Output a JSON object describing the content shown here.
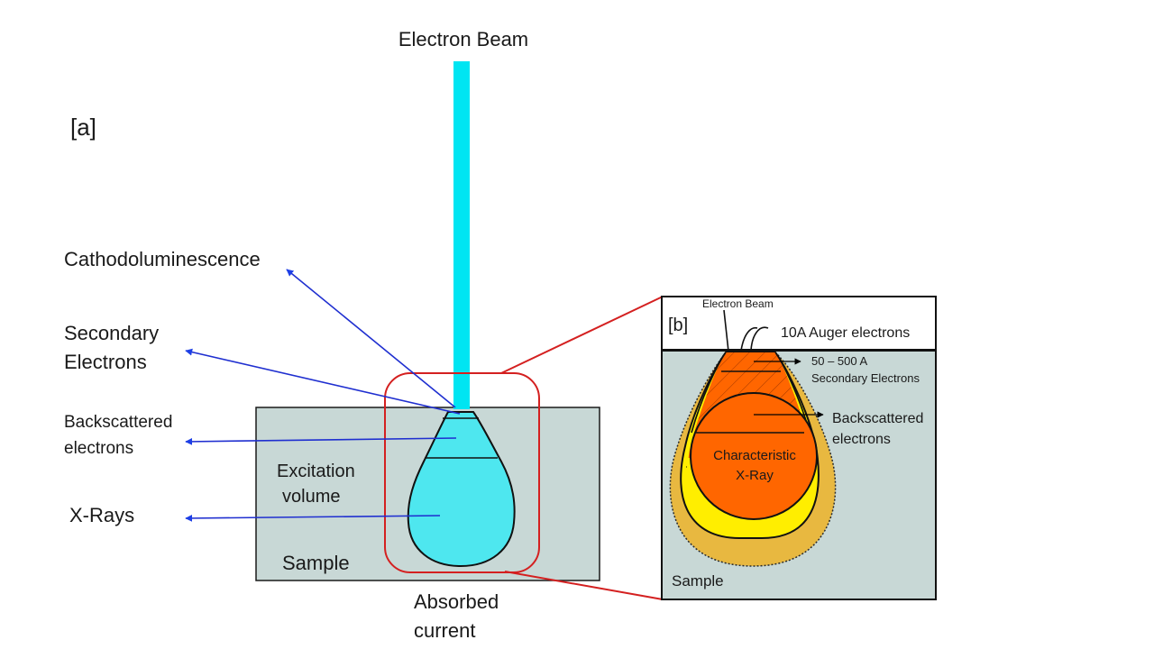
{
  "labels": {
    "electron_beam": "Electron Beam",
    "panel_a": "[a]",
    "cathodoluminescence": "Cathodoluminescence",
    "secondary_electrons_line1": "Secondary",
    "secondary_electrons_line2": "Electrons",
    "backscattered_line1": "Backscattered",
    "backscattered_line2": "electrons",
    "xrays": "X-Rays",
    "excitation_line1": "Excitation",
    "excitation_line2": "volume",
    "sample": "Sample",
    "absorbed_line1": "Absorbed",
    "absorbed_line2": "current"
  },
  "inset": {
    "panel_b": "[b]",
    "electron_beam": "Electron Beam",
    "auger": "10A Auger electrons",
    "secondary_line1": "50 – 500 A",
    "secondary_line2": "Secondary Electrons",
    "backscattered_line1": "Backscattered",
    "backscattered_line2": "electrons",
    "xray_line1": "Characteristic",
    "xray_line2": "X-Ray",
    "sample": "Sample"
  },
  "colors": {
    "beam": "#00e5f2",
    "excitation": "#4ee7ef",
    "sample_fill": "#c8d8d6",
    "arrow": "#1f2fd0",
    "arrow_head": "#1d3fe6",
    "highlight": "#d42020",
    "xray_orange": "#ff6600",
    "backscatter_yellow": "#ffee00",
    "outer_gold": "#e8b840"
  }
}
